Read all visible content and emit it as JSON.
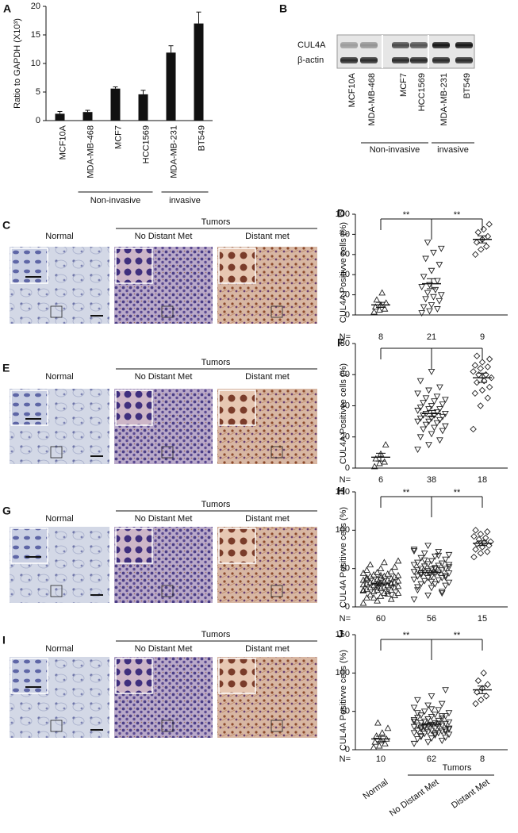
{
  "panel_labels": [
    "A",
    "B",
    "C",
    "D",
    "E",
    "F",
    "G",
    "H",
    "I",
    "J"
  ],
  "chart_data": [
    {
      "type": "bar",
      "ylabel": "Ratio to GAPDH (X10³)",
      "categories": [
        "MCF10A",
        "MDA-MB-468",
        "MCF7",
        "HCC1569",
        "MDA-MB-231",
        "BT549"
      ],
      "values": [
        1.2,
        1.5,
        5.6,
        4.6,
        11.9,
        17
      ],
      "errors": [
        0.4,
        0.3,
        0.3,
        0.7,
        1.2,
        2.0
      ],
      "color": "#111111",
      "category_groups": [
        "Non-invasive",
        "invasive"
      ],
      "ylim": [
        0,
        20
      ],
      "yticks": [
        0,
        5,
        10,
        15,
        20
      ]
    },
    {
      "type": "dot",
      "ylabel": "CUL4A Positivve cells (%)",
      "n_label": "N=",
      "ylim": [
        0,
        100
      ],
      "yticks": [
        0,
        20,
        40,
        60,
        80,
        100
      ],
      "significance_labels": [
        "**",
        "**"
      ],
      "groups": [
        {
          "n": 8,
          "marker": "triangle-up",
          "mean": 10,
          "sem": 2.5,
          "values": [
            3,
            5,
            6,
            8,
            10,
            12,
            15,
            22
          ]
        },
        {
          "n": 21,
          "marker": "triangle-down",
          "mean": 31,
          "sem": 5,
          "values": [
            2,
            4,
            6,
            8,
            10,
            14,
            16,
            18,
            20,
            22,
            25,
            28,
            30,
            34,
            38,
            44,
            50,
            56,
            62,
            66,
            72
          ]
        },
        {
          "n": 9,
          "marker": "diamond",
          "mean": 75,
          "sem": 3.5,
          "values": [
            60,
            65,
            68,
            72,
            75,
            78,
            82,
            85,
            90
          ]
        }
      ]
    },
    {
      "type": "dot",
      "ylabel": "CUL4A Positivve cells (%)",
      "n_label": "N=",
      "ylim": [
        0,
        80
      ],
      "yticks": [
        0,
        20,
        40,
        60,
        80
      ],
      "significance_labels": [],
      "groups": [
        {
          "n": 6,
          "marker": "triangle-up",
          "mean": 7,
          "sem": 2.5,
          "values": [
            1,
            3,
            4,
            6,
            9,
            15
          ]
        },
        {
          "n": 38,
          "marker": "triangle-down",
          "mean": 35,
          "sem": 2,
          "values": [
            12,
            15,
            18,
            20,
            22,
            24,
            25,
            26,
            27,
            28,
            29,
            30,
            30,
            31,
            32,
            32,
            33,
            34,
            34,
            35,
            35,
            36,
            37,
            38,
            38,
            39,
            40,
            41,
            42,
            43,
            44,
            45,
            46,
            48,
            50,
            52,
            56,
            62
          ]
        },
        {
          "n": 18,
          "marker": "diamond",
          "mean": 58,
          "sem": 3,
          "values": [
            25,
            40,
            45,
            48,
            50,
            52,
            55,
            56,
            58,
            60,
            60,
            62,
            64,
            65,
            66,
            68,
            70,
            72
          ]
        }
      ]
    },
    {
      "type": "dot",
      "ylabel": "CUL4A Positivve cells (%)",
      "n_label": "N=",
      "ylim": [
        0,
        150
      ],
      "yticks": [
        0,
        50,
        100,
        150
      ],
      "significance_labels": [
        "**",
        "**"
      ],
      "groups": [
        {
          "n": 60,
          "marker": "triangle-up",
          "mean": 30,
          "sem": 2,
          "values": [
            5,
            8,
            10,
            12,
            14,
            15,
            16,
            18,
            18,
            20,
            20,
            21,
            22,
            22,
            23,
            24,
            25,
            25,
            26,
            27,
            28,
            28,
            29,
            30,
            30,
            30,
            31,
            32,
            32,
            33,
            34,
            34,
            35,
            35,
            36,
            37,
            38,
            38,
            39,
            40,
            40,
            41,
            42,
            43,
            44,
            45,
            46,
            48,
            50,
            52,
            55,
            58,
            60,
            12,
            17,
            22,
            26,
            31,
            36,
            41
          ]
        },
        {
          "n": 56,
          "marker": "triangle-down",
          "mean": 45,
          "sem": 2.5,
          "values": [
            10,
            15,
            20,
            22,
            25,
            28,
            30,
            30,
            32,
            34,
            35,
            36,
            38,
            38,
            40,
            40,
            41,
            42,
            43,
            44,
            45,
            45,
            46,
            47,
            48,
            48,
            49,
            50,
            50,
            51,
            52,
            53,
            54,
            55,
            56,
            57,
            58,
            60,
            62,
            64,
            66,
            68,
            70,
            72,
            75,
            80,
            18,
            26,
            33,
            39,
            44,
            50,
            55,
            61,
            67,
            73
          ]
        },
        {
          "n": 15,
          "marker": "diamond",
          "mean": 83,
          "sem": 3,
          "values": [
            65,
            70,
            72,
            75,
            78,
            80,
            82,
            84,
            85,
            88,
            90,
            92,
            95,
            98,
            100
          ]
        }
      ]
    },
    {
      "type": "dot",
      "ylabel": "CUL4A Positivve cells (%)",
      "n_label": "N=",
      "ylim": [
        0,
        150
      ],
      "yticks": [
        0,
        50,
        100,
        150
      ],
      "significance_labels": [
        "**",
        "**"
      ],
      "categories": [
        "Normal",
        "No Distant Met",
        "Distant Met"
      ],
      "category_group": "Tumors",
      "groups": [
        {
          "n": 10,
          "marker": "triangle-up",
          "mean": 14,
          "sem": 3.5,
          "values": [
            3,
            5,
            8,
            10,
            12,
            14,
            18,
            22,
            28,
            35
          ]
        },
        {
          "n": 62,
          "marker": "triangle-down",
          "mean": 33,
          "sem": 2,
          "values": [
            8,
            10,
            12,
            14,
            15,
            16,
            18,
            19,
            20,
            21,
            22,
            22,
            23,
            24,
            25,
            25,
            26,
            27,
            28,
            28,
            29,
            30,
            30,
            31,
            32,
            32,
            33,
            34,
            35,
            35,
            36,
            37,
            38,
            39,
            40,
            41,
            42,
            43,
            44,
            45,
            46,
            48,
            50,
            52,
            55,
            58,
            60,
            65,
            70,
            78,
            17,
            21,
            27,
            31,
            34,
            37,
            40,
            44,
            48,
            53,
            24,
            29
          ]
        },
        {
          "n": 8,
          "marker": "diamond",
          "mean": 78,
          "sem": 5,
          "values": [
            60,
            65,
            70,
            75,
            80,
            85,
            90,
            100
          ]
        }
      ]
    }
  ],
  "blot": {
    "rows": [
      "CUL4A",
      "β-actin"
    ],
    "lanes": [
      "MCF10A",
      "MDA-MB-468",
      "MCF7",
      "HCC1569",
      "MDA-MB-231",
      "BT549"
    ],
    "groups": [
      "Non-invasive",
      "invasive"
    ]
  },
  "ihc": [
    {
      "header": "Tumors",
      "columns": [
        "Normal",
        "No Distant Met",
        "Distant met"
      ]
    },
    {
      "header": "Tumors",
      "columns": [
        "Normal",
        "No Distant Met",
        "Distant met"
      ]
    },
    {
      "header": "Tumors",
      "columns": [
        "Normal",
        "No Distant Met",
        "Distant met"
      ]
    },
    {
      "header": "Tumors",
      "columns": [
        "Normal",
        "No Distant Met",
        "Distant met"
      ]
    }
  ]
}
